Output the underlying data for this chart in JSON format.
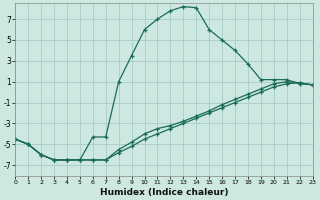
{
  "xlabel": "Humidex (Indice chaleur)",
  "bg_color": "#cce8e0",
  "grid_color": "#aaccc4",
  "line_color": "#1a6b5a",
  "xlim": [
    0,
    23
  ],
  "ylim": [
    -8,
    8.5
  ],
  "yticks": [
    7,
    5,
    3,
    1,
    -1,
    -3,
    -5,
    -7
  ],
  "xticks": [
    0,
    1,
    2,
    3,
    4,
    5,
    6,
    7,
    8,
    9,
    10,
    11,
    12,
    13,
    14,
    15,
    16,
    17,
    18,
    19,
    20,
    21,
    22,
    23
  ],
  "line1_x": [
    0,
    1,
    2,
    3,
    4,
    5,
    6,
    7,
    8,
    9,
    10,
    11,
    12,
    13,
    14,
    15,
    16,
    17,
    18,
    19,
    20,
    21,
    22,
    23
  ],
  "line1_y": [
    -4.5,
    -5.0,
    -6.0,
    -6.5,
    -6.5,
    -6.5,
    -4.3,
    -4.3,
    1.0,
    3.5,
    6.0,
    7.0,
    7.8,
    8.2,
    8.1,
    6.0,
    5.0,
    4.0,
    2.7,
    1.2,
    1.2,
    1.2,
    0.8,
    0.7
  ],
  "line2_x": [
    0,
    1,
    2,
    3,
    4,
    5,
    6,
    7,
    8,
    9,
    10,
    11,
    12,
    13,
    14,
    15,
    16,
    17,
    18,
    19,
    20,
    21,
    22,
    23
  ],
  "line2_y": [
    -4.5,
    -5.0,
    -6.0,
    -6.5,
    -6.5,
    -6.5,
    -6.5,
    -6.5,
    -5.5,
    -4.8,
    -4.0,
    -3.5,
    -3.2,
    -2.8,
    -2.3,
    -1.8,
    -1.2,
    -0.7,
    -0.2,
    0.3,
    0.8,
    1.0,
    0.9,
    0.7
  ],
  "line3_x": [
    0,
    1,
    2,
    3,
    4,
    5,
    6,
    7,
    8,
    9,
    10,
    11,
    12,
    13,
    14,
    15,
    16,
    17,
    18,
    19,
    20,
    21,
    22,
    23
  ],
  "line3_y": [
    -4.5,
    -5.0,
    -6.0,
    -6.5,
    -6.5,
    -6.5,
    -6.5,
    -6.5,
    -5.8,
    -5.2,
    -4.5,
    -4.0,
    -3.5,
    -3.0,
    -2.5,
    -2.0,
    -1.5,
    -1.0,
    -0.5,
    0.0,
    0.5,
    0.8,
    0.9,
    0.7
  ]
}
